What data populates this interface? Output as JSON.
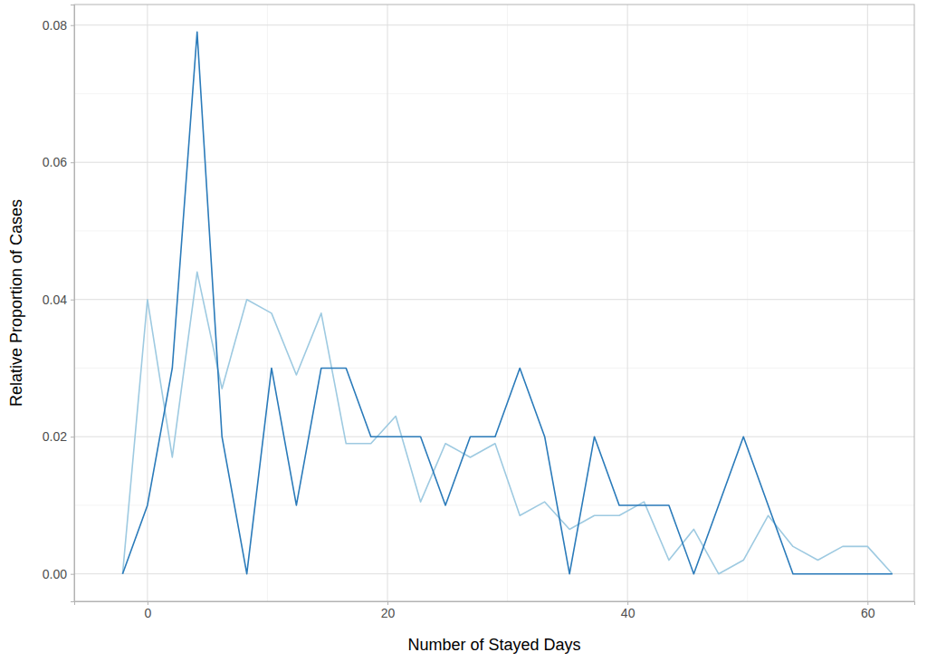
{
  "chart_data": {
    "type": "line",
    "x_label": "Number of Stayed Days",
    "y_label": "Relative Proportion of Cases",
    "x": [
      -2.07,
      0,
      2.07,
      4.14,
      6.21,
      8.28,
      10.34,
      12.41,
      14.48,
      16.55,
      18.62,
      20.69,
      22.76,
      24.83,
      26.9,
      28.97,
      31.03,
      33.1,
      35.17,
      37.24,
      39.31,
      41.38,
      43.45,
      45.52,
      47.59,
      49.66,
      51.72,
      53.79,
      55.86,
      57.93,
      60,
      62.07
    ],
    "series": [
      {
        "color": "#9ecae1",
        "values": [
          0,
          0.04,
          0.017,
          0.044,
          0.027,
          0.04,
          0.038,
          0.029,
          0.038,
          0.019,
          0.019,
          0.023,
          0.0105,
          0.019,
          0.017,
          0.019,
          0.0085,
          0.0105,
          0.0065,
          0.0085,
          0.0085,
          0.0105,
          0.002,
          0.0065,
          0,
          0.002,
          0.0085,
          0.004,
          0.002,
          0.004,
          0.004,
          0
        ]
      },
      {
        "color": "#2b7bba",
        "values": [
          0,
          0.01,
          0.03,
          0.079,
          0.02,
          0,
          0.03,
          0.01,
          0.03,
          0.03,
          0.02,
          0.02,
          0.02,
          0.01,
          0.02,
          0.02,
          0.03,
          0.02,
          0,
          0.02,
          0.01,
          0.01,
          0.01,
          0,
          0.01,
          0.02,
          0.01,
          0,
          0,
          0,
          0,
          0
        ]
      }
    ],
    "xlim": [
      -6.1,
      63.9
    ],
    "xticks": [
      0,
      20,
      40,
      60
    ],
    "ylim": [
      -0.004,
      0.083
    ],
    "yticks": [
      {
        "value": 0,
        "label": "0.00"
      },
      {
        "value": 0.02,
        "label": "0.02"
      },
      {
        "value": 0.04,
        "label": "0.04"
      },
      {
        "value": 0.06,
        "label": "0.06"
      },
      {
        "value": 0.08,
        "label": "0.08"
      }
    ],
    "grid": true
  }
}
